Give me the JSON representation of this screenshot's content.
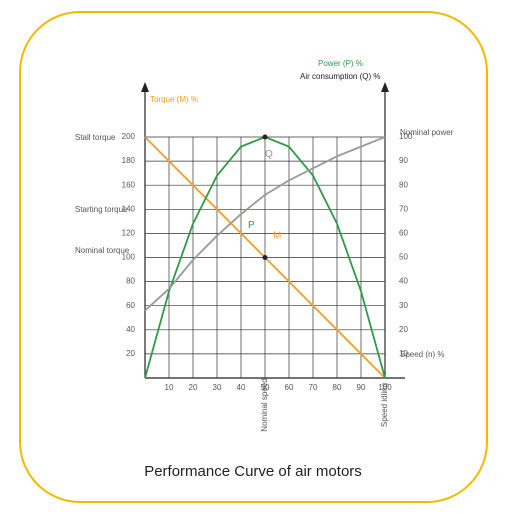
{
  "chart_data": {
    "type": "line",
    "x": [
      0,
      10,
      20,
      30,
      40,
      50,
      60,
      70,
      80,
      90,
      100
    ],
    "xlim": [
      0,
      100
    ],
    "xticks": [
      10,
      20,
      30,
      40,
      50,
      60,
      70,
      80,
      90,
      100
    ],
    "ylim": [
      0,
      200
    ],
    "yticks": [
      20,
      40,
      60,
      80,
      100,
      120,
      140,
      160,
      180,
      200
    ],
    "y2lim": [
      0,
      100
    ],
    "y2ticks": [
      10,
      20,
      30,
      40,
      50,
      60,
      70,
      80,
      90,
      100
    ],
    "y_label": "Torque (M) %",
    "y2_label_1": "Power (P) %",
    "y2_label_2": "Air consumption (Q) %",
    "x_label": "Speed (n) %",
    "grid": true,
    "series": [
      {
        "name": "M",
        "color": "#f0a020",
        "values": [
          200,
          180,
          160,
          140,
          120,
          100,
          80,
          60,
          40,
          20,
          0
        ]
      },
      {
        "name": "P",
        "color": "#2e9a48",
        "axis": "y2",
        "values": [
          0,
          36,
          64,
          84,
          96,
          100,
          96,
          84,
          64,
          36,
          0
        ]
      },
      {
        "name": "Q",
        "color": "#999999",
        "axis": "y2",
        "values": [
          28,
          37,
          49,
          59,
          68,
          76,
          82,
          87,
          92,
          96,
          100
        ]
      }
    ],
    "annotations": [
      "Stall torque",
      "Starting torque",
      "Nominal torque",
      "Nominal power",
      "Nominal speed",
      "Speed idling"
    ]
  },
  "caption": "Performance Curve of air motors"
}
